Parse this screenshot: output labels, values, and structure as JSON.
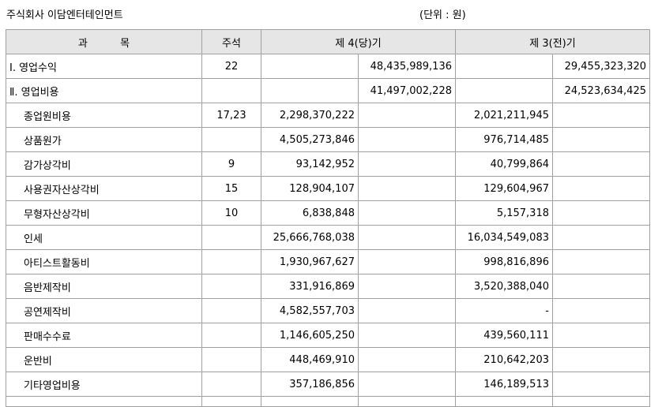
{
  "company": "주식회사 이담엔터테인먼트",
  "unit": "(단위 : 원)",
  "headers": {
    "item": "과          목",
    "note": "주석",
    "current": "제 4(당)기",
    "prior": "제 3(전)기"
  },
  "rows": [
    {
      "item": "Ⅰ. 영업수익",
      "note": "22",
      "cur_detail": "",
      "cur_total": "48,435,989,136",
      "prior_detail": "",
      "prior_total": "29,455,323,320"
    },
    {
      "item": "Ⅱ. 영업비용",
      "note": "",
      "cur_detail": "",
      "cur_total": "41,497,002,228",
      "prior_detail": "",
      "prior_total": "24,523,634,425"
    },
    {
      "item": "종업원비용",
      "note": "17,23",
      "cur_detail": "2,298,370,222",
      "cur_total": "",
      "prior_detail": "2,021,211,945",
      "prior_total": ""
    },
    {
      "item": "상품원가",
      "note": "",
      "cur_detail": "4,505,273,846",
      "cur_total": "",
      "prior_detail": "976,714,485",
      "prior_total": ""
    },
    {
      "item": "감가상각비",
      "note": "9",
      "cur_detail": "93,142,952",
      "cur_total": "",
      "prior_detail": "40,799,864",
      "prior_total": ""
    },
    {
      "item": "사용권자산상각비",
      "note": "15",
      "cur_detail": "128,904,107",
      "cur_total": "",
      "prior_detail": "129,604,967",
      "prior_total": ""
    },
    {
      "item": "무형자산상각비",
      "note": "10",
      "cur_detail": "6,838,848",
      "cur_total": "",
      "prior_detail": "5,157,318",
      "prior_total": ""
    },
    {
      "item": "인세",
      "note": "",
      "cur_detail": "25,666,768,038",
      "cur_total": "",
      "prior_detail": "16,034,549,083",
      "prior_total": ""
    },
    {
      "item": "아티스트활동비",
      "note": "",
      "cur_detail": "1,930,967,627",
      "cur_total": "",
      "prior_detail": "998,816,896",
      "prior_total": ""
    },
    {
      "item": "음반제작비",
      "note": "",
      "cur_detail": "331,916,869",
      "cur_total": "",
      "prior_detail": "3,520,388,040",
      "prior_total": ""
    },
    {
      "item": "공연제작비",
      "note": "",
      "cur_detail": "4,582,557,703",
      "cur_total": "",
      "prior_detail": "-",
      "prior_total": ""
    },
    {
      "item": "판매수수료",
      "note": "",
      "cur_detail": "1,146,605,250",
      "cur_total": "",
      "prior_detail": "439,560,111",
      "prior_total": ""
    },
    {
      "item": "운반비",
      "note": "",
      "cur_detail": "448,469,910",
      "cur_total": "",
      "prior_detail": "210,642,203",
      "prior_total": ""
    },
    {
      "item": "기타영업비용",
      "note": "",
      "cur_detail": "357,186,856",
      "cur_total": "",
      "prior_detail": "146,189,513",
      "prior_total": ""
    }
  ]
}
